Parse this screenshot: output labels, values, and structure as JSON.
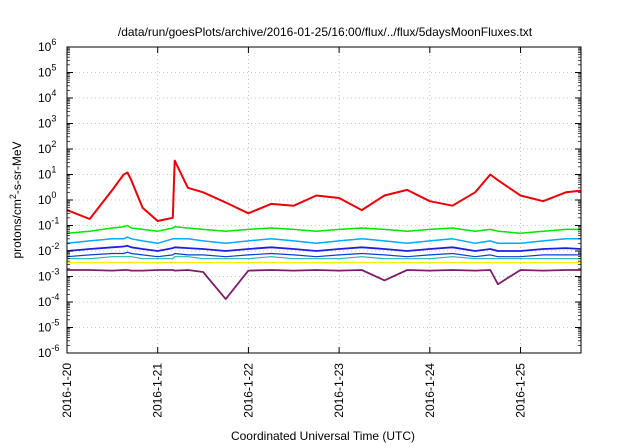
{
  "chart_data": {
    "type": "line",
    "title": "/data/run/goesPlots/archive/2016-01-25/16:00/flux/../flux/5daysMoonFluxes.txt",
    "xlabel": "Coordinated Universal Time (UTC)",
    "ylabel": {
      "prefix": "protons/cm",
      "superscript": "2",
      "suffix": "-s-sr-MeV"
    },
    "y_scale": "log",
    "ylim": [
      1e-06,
      1000000.0
    ],
    "y_ticks": [
      {
        "exp": "-6",
        "value": 1e-06
      },
      {
        "exp": "-5",
        "value": 1e-05
      },
      {
        "exp": "-4",
        "value": 0.0001
      },
      {
        "exp": "-3",
        "value": 0.001
      },
      {
        "exp": "-2",
        "value": 0.01
      },
      {
        "exp": "-1",
        "value": 0.1
      },
      {
        "exp": "0",
        "value": 1
      },
      {
        "exp": "1",
        "value": 10
      },
      {
        "exp": "2",
        "value": 100
      },
      {
        "exp": "3",
        "value": 1000
      },
      {
        "exp": "4",
        "value": 10000
      },
      {
        "exp": "5",
        "value": 100000
      },
      {
        "exp": "6",
        "value": 1000000
      }
    ],
    "y_tick_base": "10",
    "xlim": [
      "2016-01-20",
      "2016-01-25T16:00"
    ],
    "x_ticks": [
      "2016-1-20",
      "2016-1-21",
      "2016-1-22",
      "2016-1-23",
      "2016-1-24",
      "2016-1-25"
    ],
    "grid": true,
    "legend": "none",
    "x": [
      "2016-01-20T00:00",
      "2016-01-20T06:00",
      "2016-01-20T12:00",
      "2016-01-20T15:00",
      "2016-01-20T16:00",
      "2016-01-20T17:00",
      "2016-01-20T20:00",
      "2016-01-21T00:00",
      "2016-01-21T04:00",
      "2016-01-21T04:30",
      "2016-01-21T08:00",
      "2016-01-21T12:00",
      "2016-01-21T18:00",
      "2016-01-22T00:00",
      "2016-01-22T06:00",
      "2016-01-22T12:00",
      "2016-01-22T18:00",
      "2016-01-23T00:00",
      "2016-01-23T06:00",
      "2016-01-23T12:00",
      "2016-01-23T18:00",
      "2016-01-24T00:00",
      "2016-01-24T06:00",
      "2016-01-24T12:00",
      "2016-01-24T16:00",
      "2016-01-24T18:00",
      "2016-01-25T00:00",
      "2016-01-25T06:00",
      "2016-01-25T12:00",
      "2016-01-25T16:00"
    ],
    "series": [
      {
        "color": "#e8000b",
        "width": 2,
        "values": [
          0.4,
          0.18,
          2.5,
          10,
          12,
          6,
          0.5,
          0.15,
          0.2,
          35,
          3,
          2,
          0.8,
          0.3,
          0.7,
          0.6,
          1.5,
          1.2,
          0.4,
          1.5,
          2.5,
          0.9,
          0.6,
          2.0,
          10,
          6,
          1.5,
          0.9,
          2.0,
          2.3
        ]
      },
      {
        "color": "#00e500",
        "width": 1.5,
        "values": [
          0.05,
          0.06,
          0.08,
          0.09,
          0.1,
          0.08,
          0.07,
          0.06,
          0.08,
          0.09,
          0.08,
          0.07,
          0.06,
          0.07,
          0.08,
          0.07,
          0.06,
          0.07,
          0.08,
          0.07,
          0.06,
          0.07,
          0.08,
          0.06,
          0.07,
          0.06,
          0.05,
          0.06,
          0.07,
          0.07
        ]
      },
      {
        "color": "#00aaff",
        "width": 1.5,
        "values": [
          0.02,
          0.025,
          0.03,
          0.03,
          0.035,
          0.03,
          0.025,
          0.02,
          0.03,
          0.03,
          0.03,
          0.025,
          0.02,
          0.025,
          0.03,
          0.025,
          0.02,
          0.025,
          0.03,
          0.025,
          0.02,
          0.025,
          0.03,
          0.02,
          0.025,
          0.02,
          0.02,
          0.025,
          0.03,
          0.03
        ]
      },
      {
        "color": "#1f1fe0",
        "width": 1.8,
        "values": [
          0.01,
          0.012,
          0.014,
          0.015,
          0.016,
          0.014,
          0.012,
          0.01,
          0.013,
          0.014,
          0.013,
          0.012,
          0.01,
          0.012,
          0.014,
          0.012,
          0.01,
          0.012,
          0.014,
          0.012,
          0.01,
          0.012,
          0.014,
          0.01,
          0.012,
          0.01,
          0.01,
          0.012,
          0.013,
          0.012
        ]
      },
      {
        "color": "#0b3fd0",
        "width": 1.2,
        "values": [
          0.006,
          0.007,
          0.008,
          0.008,
          0.009,
          0.008,
          0.007,
          0.006,
          0.007,
          0.008,
          0.007,
          0.007,
          0.006,
          0.007,
          0.008,
          0.007,
          0.006,
          0.007,
          0.008,
          0.007,
          0.006,
          0.007,
          0.008,
          0.006,
          0.007,
          0.006,
          0.006,
          0.007,
          0.007,
          0.007
        ]
      },
      {
        "color": "#21b8a8",
        "width": 1.2,
        "values": [
          0.005,
          0.005,
          0.006,
          0.006,
          0.006,
          0.006,
          0.005,
          0.005,
          0.005,
          0.006,
          0.006,
          0.005,
          0.005,
          0.005,
          0.006,
          0.005,
          0.005,
          0.005,
          0.006,
          0.005,
          0.005,
          0.005,
          0.006,
          0.005,
          0.005,
          0.005,
          0.005,
          0.005,
          0.005,
          0.005
        ]
      },
      {
        "color": "#f2f200",
        "width": 1.5,
        "values": [
          0.0035,
          0.0035,
          0.0035,
          0.0035,
          0.0035,
          0.0035,
          0.0035,
          0.0035,
          0.0035,
          0.0035,
          0.0035,
          0.0035,
          0.0035,
          0.0035,
          0.0035,
          0.0035,
          0.0035,
          0.0035,
          0.0035,
          0.0035,
          0.0035,
          0.0035,
          0.0035,
          0.0035,
          0.0035,
          0.0035,
          0.0035,
          0.0035,
          0.0035,
          0.0035
        ]
      },
      {
        "color": "#7b1f6a",
        "width": 1.8,
        "values": [
          0.0018,
          0.0018,
          0.0017,
          0.0018,
          0.0018,
          0.0017,
          0.0017,
          0.0018,
          0.0018,
          0.0017,
          0.0018,
          0.0015,
          0.00013,
          0.0017,
          0.0018,
          0.0017,
          0.0018,
          0.0017,
          0.0018,
          0.0007,
          0.0018,
          0.0017,
          0.0018,
          0.0017,
          0.0018,
          0.0005,
          0.0018,
          0.0017,
          0.0018,
          0.0018
        ]
      }
    ]
  }
}
